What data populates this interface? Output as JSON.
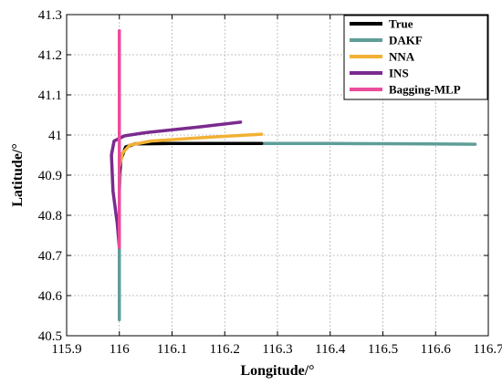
{
  "chart_data": {
    "type": "line",
    "title": "",
    "xlabel": "Longitude/°",
    "ylabel": "Latitude/°",
    "xlim": [
      115.9,
      116.7
    ],
    "ylim": [
      40.5,
      41.3
    ],
    "xticks": [
      "115.9",
      "116",
      "116.1",
      "116.2",
      "116.3",
      "116.4",
      "116.5",
      "116.6",
      "116.7"
    ],
    "yticks": [
      "40.5",
      "40.6",
      "40.7",
      "40.8",
      "40.9",
      "41",
      "41.1",
      "41.2",
      "41.3"
    ],
    "grid": true,
    "legend_position": "top-right",
    "series": [
      {
        "name": "DAKF",
        "color": "#5f9e98",
        "points": [
          [
            116,
            40.54
          ],
          [
            116,
            40.72
          ],
          [
            116,
            40.86
          ],
          [
            116.003,
            40.94
          ],
          [
            116.012,
            40.97
          ],
          [
            116.03,
            40.978
          ],
          [
            116.1,
            40.979
          ],
          [
            116.27,
            40.979
          ],
          [
            116.4,
            40.979
          ],
          [
            116.55,
            40.978
          ],
          [
            116.675,
            40.977
          ]
        ]
      },
      {
        "name": "True",
        "color": "#000000",
        "points": [
          [
            116,
            40.9
          ],
          [
            116.003,
            40.94
          ],
          [
            116.012,
            40.97
          ],
          [
            116.03,
            40.978
          ],
          [
            116.1,
            40.979
          ],
          [
            116.27,
            40.979
          ]
        ]
      },
      {
        "name": "NNA",
        "color": "#f2b134",
        "points": [
          [
            116,
            40.92
          ],
          [
            116.006,
            40.955
          ],
          [
            116.02,
            40.975
          ],
          [
            116.06,
            40.985
          ],
          [
            116.15,
            40.993
          ],
          [
            116.27,
            41.002
          ]
        ]
      },
      {
        "name": "INS",
        "color": "#7b2a8e",
        "points": [
          [
            116,
            40.72
          ],
          [
            115.996,
            40.78
          ],
          [
            115.988,
            40.86
          ],
          [
            115.985,
            40.95
          ],
          [
            115.99,
            40.985
          ],
          [
            116.01,
            40.998
          ],
          [
            116.05,
            41.006
          ],
          [
            116.15,
            41.02
          ],
          [
            116.23,
            41.032
          ]
        ]
      },
      {
        "name": "Bagging-MLP",
        "color": "#ea4d9c",
        "points": [
          [
            116,
            40.72
          ],
          [
            116,
            40.9
          ],
          [
            116,
            41.0
          ],
          [
            116,
            41.1
          ],
          [
            116,
            41.26
          ]
        ]
      }
    ],
    "legend_order": [
      "True",
      "DAKF",
      "NNA",
      "INS",
      "Bagging-MLP"
    ]
  }
}
